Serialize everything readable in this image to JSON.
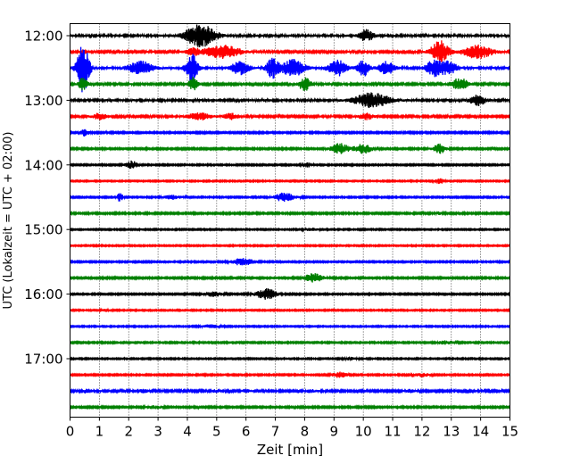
{
  "chart_data": {
    "type": "line",
    "title": "",
    "xlabel": "Zeit  [min]",
    "ylabel": "UTC (Lokalzeit = UTC + 02:00)",
    "xlim": [
      0,
      15
    ],
    "x_ticks": [
      "0",
      "1",
      "2",
      "3",
      "4",
      "5",
      "6",
      "7",
      "8",
      "9",
      "10",
      "11",
      "12",
      "13",
      "14",
      "15"
    ],
    "y_tick_labels": [
      "12:00",
      "13:00",
      "14:00",
      "15:00",
      "16:00",
      "17:00"
    ],
    "y_tick_rows": [
      0,
      4,
      8,
      12,
      16,
      20
    ],
    "grid": {
      "x": "dotted-vertical",
      "y": "none"
    },
    "row_colors": [
      "#000000",
      "#ff0000",
      "#0000ff",
      "#008000"
    ],
    "row_count": 24,
    "traces": [
      {
        "start": "12:00",
        "color": "black",
        "amp": 0.35,
        "events": [
          [
            4.2,
            1.6,
            0.8
          ],
          [
            4.6,
            2.5,
            0.9
          ],
          [
            10.1,
            1.8,
            0.5
          ]
        ]
      },
      {
        "start": "12:15",
        "color": "red",
        "amp": 0.3,
        "events": [
          [
            5.2,
            2.0,
            1.2
          ],
          [
            12.6,
            3.5,
            0.6
          ],
          [
            13.9,
            2.0,
            1.0
          ],
          [
            4.2,
            1.0,
            0.5
          ]
        ]
      },
      {
        "start": "12:30",
        "color": "blue",
        "amp": 0.35,
        "events": [
          [
            0.45,
            8.0,
            0.4
          ],
          [
            2.4,
            2.0,
            0.8
          ],
          [
            4.15,
            4.5,
            0.4
          ],
          [
            5.8,
            2.0,
            0.6
          ],
          [
            6.9,
            3.0,
            0.4
          ],
          [
            7.6,
            2.5,
            0.8
          ],
          [
            9.1,
            2.5,
            0.6
          ],
          [
            10.0,
            2.5,
            0.4
          ],
          [
            10.8,
            2.0,
            0.5
          ],
          [
            12.4,
            2.5,
            0.5
          ],
          [
            12.9,
            2.0,
            0.6
          ]
        ]
      },
      {
        "start": "12:45",
        "color": "green",
        "amp": 0.3,
        "events": [
          [
            0.45,
            2.0,
            0.3
          ],
          [
            4.2,
            2.0,
            0.3
          ],
          [
            8.0,
            2.0,
            0.4
          ],
          [
            13.3,
            1.8,
            0.6
          ]
        ]
      },
      {
        "start": "13:00",
        "color": "black",
        "amp": 0.35,
        "events": [
          [
            10.3,
            2.2,
            1.2
          ],
          [
            13.9,
            1.6,
            0.5
          ]
        ]
      },
      {
        "start": "13:15",
        "color": "red",
        "amp": 0.3,
        "events": [
          [
            1.0,
            0.9,
            0.5
          ],
          [
            4.4,
            1.0,
            0.8
          ],
          [
            5.5,
            0.9,
            0.5
          ],
          [
            10.1,
            0.9,
            0.5
          ]
        ]
      },
      {
        "start": "13:30",
        "color": "blue",
        "amp": 0.25,
        "events": [
          [
            0.5,
            1.0,
            0.3
          ]
        ]
      },
      {
        "start": "13:45",
        "color": "green",
        "amp": 0.25,
        "events": [
          [
            9.2,
            1.6,
            0.6
          ],
          [
            10.0,
            1.4,
            0.6
          ],
          [
            12.6,
            1.5,
            0.4
          ]
        ]
      },
      {
        "start": "14:00",
        "color": "black",
        "amp": 0.22,
        "events": [
          [
            2.1,
            1.2,
            0.4
          ],
          [
            8.1,
            0.6,
            0.3
          ]
        ]
      },
      {
        "start": "14:15",
        "color": "red",
        "amp": 0.2,
        "events": [
          [
            12.6,
            0.8,
            0.3
          ]
        ]
      },
      {
        "start": "14:30",
        "color": "blue",
        "amp": 0.22,
        "events": [
          [
            1.7,
            1.3,
            0.2
          ],
          [
            3.5,
            0.6,
            0.6
          ],
          [
            7.3,
            1.3,
            0.7
          ]
        ]
      },
      {
        "start": "14:45",
        "color": "green",
        "amp": 0.25,
        "events": [
          [
            12.6,
            0.5,
            0.2
          ]
        ]
      },
      {
        "start": "15:00",
        "color": "black",
        "amp": 0.2,
        "events": [
          [
            8.2,
            0.4,
            0.5
          ]
        ]
      },
      {
        "start": "15:15",
        "color": "red",
        "amp": 0.2,
        "events": []
      },
      {
        "start": "15:30",
        "color": "blue",
        "amp": 0.22,
        "events": [
          [
            5.9,
            1.2,
            0.7
          ]
        ]
      },
      {
        "start": "15:45",
        "color": "green",
        "amp": 0.25,
        "events": [
          [
            8.3,
            1.4,
            0.6
          ]
        ]
      },
      {
        "start": "16:00",
        "color": "black",
        "amp": 0.22,
        "events": [
          [
            4.9,
            0.7,
            0.6
          ],
          [
            6.7,
            1.6,
            0.7
          ]
        ]
      },
      {
        "start": "16:15",
        "color": "red",
        "amp": 0.2,
        "events": [
          [
            1.2,
            0.4,
            0.3
          ]
        ]
      },
      {
        "start": "16:30",
        "color": "blue",
        "amp": 0.2,
        "events": [
          [
            4.8,
            0.5,
            0.6
          ]
        ]
      },
      {
        "start": "16:45",
        "color": "green",
        "amp": 0.22,
        "events": [
          [
            12.8,
            0.5,
            0.6
          ]
        ]
      },
      {
        "start": "17:00",
        "color": "black",
        "amp": 0.2,
        "events": [
          [
            9.6,
            0.4,
            0.4
          ]
        ]
      },
      {
        "start": "17:15",
        "color": "red",
        "amp": 0.22,
        "events": [
          [
            9.2,
            0.8,
            0.5
          ],
          [
            12.0,
            0.5,
            0.5
          ]
        ]
      },
      {
        "start": "17:30",
        "color": "blue",
        "amp": 0.3,
        "events": [
          [
            0.6,
            0.6,
            0.3
          ],
          [
            2.5,
            0.4,
            0.3
          ],
          [
            5.0,
            0.4,
            0.3
          ],
          [
            6.0,
            0.4,
            0.3
          ],
          [
            8.2,
            0.4,
            0.3
          ],
          [
            11.6,
            0.4,
            0.3
          ]
        ]
      },
      {
        "start": "17:45",
        "color": "green",
        "amp": 0.25,
        "events": [
          [
            2.9,
            0.4,
            0.5
          ]
        ]
      }
    ]
  }
}
